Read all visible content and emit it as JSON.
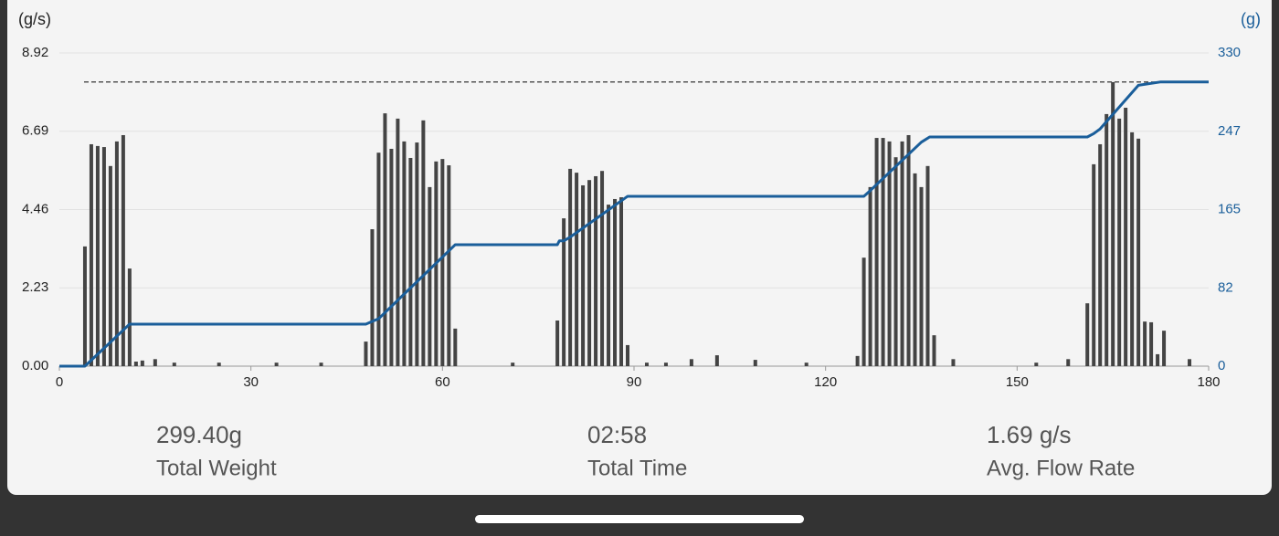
{
  "chart_data": {
    "type": "bar",
    "ylabel": "(g/s)",
    "y2label": "(g)",
    "xlim": [
      0,
      180
    ],
    "xticks": [
      0,
      30,
      60,
      90,
      120,
      150,
      180
    ],
    "ylim": [
      0,
      8.92
    ],
    "yticks": [
      {
        "value": 0,
        "label": "0.00"
      },
      {
        "value": 2.23,
        "label": "2.23"
      },
      {
        "value": 4.46,
        "label": "4.46"
      },
      {
        "value": 6.69,
        "label": "6.69"
      },
      {
        "value": 8.92,
        "label": "8.92"
      }
    ],
    "y2lim": [
      0,
      330
    ],
    "y2ticks": [
      0,
      82,
      165,
      247,
      330
    ],
    "grid": true,
    "series": [
      {
        "type": "bar",
        "color": "#444444",
        "x": [
          4,
          5,
          6,
          7,
          8,
          9,
          10,
          11,
          12,
          13,
          15,
          18,
          25,
          34,
          41,
          48,
          49,
          50,
          51,
          52,
          53,
          54,
          55,
          56,
          57,
          58,
          59,
          60,
          61,
          62,
          71,
          78,
          79,
          80,
          81,
          82,
          83,
          84,
          85,
          86,
          87,
          88,
          89,
          92,
          95,
          99,
          103,
          109,
          117,
          125,
          126,
          127,
          128,
          129,
          130,
          131,
          132,
          133,
          134,
          135,
          136,
          137,
          140,
          153,
          158,
          161,
          162,
          163,
          164,
          165,
          166,
          167,
          168,
          169,
          170,
          171,
          172,
          173,
          177
        ],
        "values": [
          3.41,
          6.32,
          6.27,
          6.24,
          5.7,
          6.4,
          6.58,
          2.78,
          0.13,
          0.16,
          0.2,
          0.1,
          0.1,
          0.1,
          0.1,
          0.7,
          3.9,
          6.08,
          7.2,
          6.19,
          7.05,
          6.4,
          5.93,
          6.37,
          7.0,
          5.1,
          5.83,
          5.9,
          5.72,
          1.07,
          0.1,
          1.3,
          4.21,
          5.62,
          5.51,
          5.15,
          5.3,
          5.41,
          5.56,
          4.6,
          4.76,
          4.81,
          0.6,
          0.1,
          0.1,
          0.2,
          0.31,
          0.18,
          0.1,
          0.29,
          3.09,
          5.1,
          6.5,
          6.5,
          6.4,
          5.95,
          6.4,
          6.58,
          5.49,
          5.1,
          5.7,
          0.88,
          0.2,
          0.1,
          0.2,
          1.79,
          5.75,
          6.32,
          7.18,
          8.09,
          7.05,
          7.36,
          6.66,
          6.48,
          1.27,
          1.25,
          0.34,
          1.01,
          0.2
        ]
      },
      {
        "type": "line",
        "axis": "y2",
        "color": "#1a5e9a",
        "x": [
          0,
          4,
          11,
          48,
          50,
          62,
          78,
          78.3,
          79,
          80,
          89,
          126,
          127,
          135,
          136.3,
          161,
          162,
          163,
          166,
          169,
          172.4,
          180
        ],
        "values": [
          0,
          0,
          44.3,
          44.3,
          50,
          128,
          128,
          132,
          132,
          136,
          179,
          179,
          185,
          236,
          241.5,
          241.5,
          245,
          250,
          273,
          296,
          299.4,
          299.4
        ]
      }
    ],
    "reference_line": {
      "value": 299.4,
      "axis": "y2"
    },
    "stats": [
      {
        "value": "299.40g",
        "label": "Total Weight"
      },
      {
        "value": "02:58",
        "label": "Total Time"
      },
      {
        "value": "1.69 g/s",
        "label": "Avg. Flow Rate"
      }
    ]
  }
}
